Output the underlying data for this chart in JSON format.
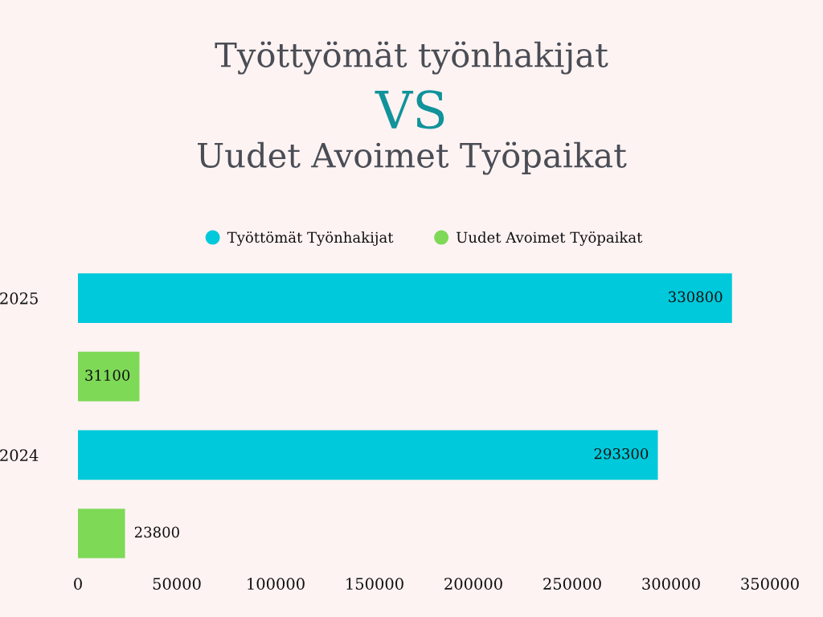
{
  "chart_data": {
    "type": "bar",
    "orientation": "horizontal",
    "title": "Työttyömät työnhakijat\nVS\nUudet Avoimet Työpaikat",
    "categories": [
      "2025",
      "2024"
    ],
    "series": [
      {
        "name": "Työttömät Työnhakijat",
        "color": "#00c9db",
        "values": [
          330800,
          293300
        ]
      },
      {
        "name": "Uudet Avoimet Työpaikat",
        "color": "#7ed957",
        "values": [
          31100,
          23800
        ]
      }
    ],
    "xlim": [
      0,
      350000
    ],
    "xticks": [
      0,
      50000,
      100000,
      150000,
      200000,
      250000,
      300000,
      350000
    ],
    "data_labels": true,
    "legend": "top",
    "grid": false
  }
}
